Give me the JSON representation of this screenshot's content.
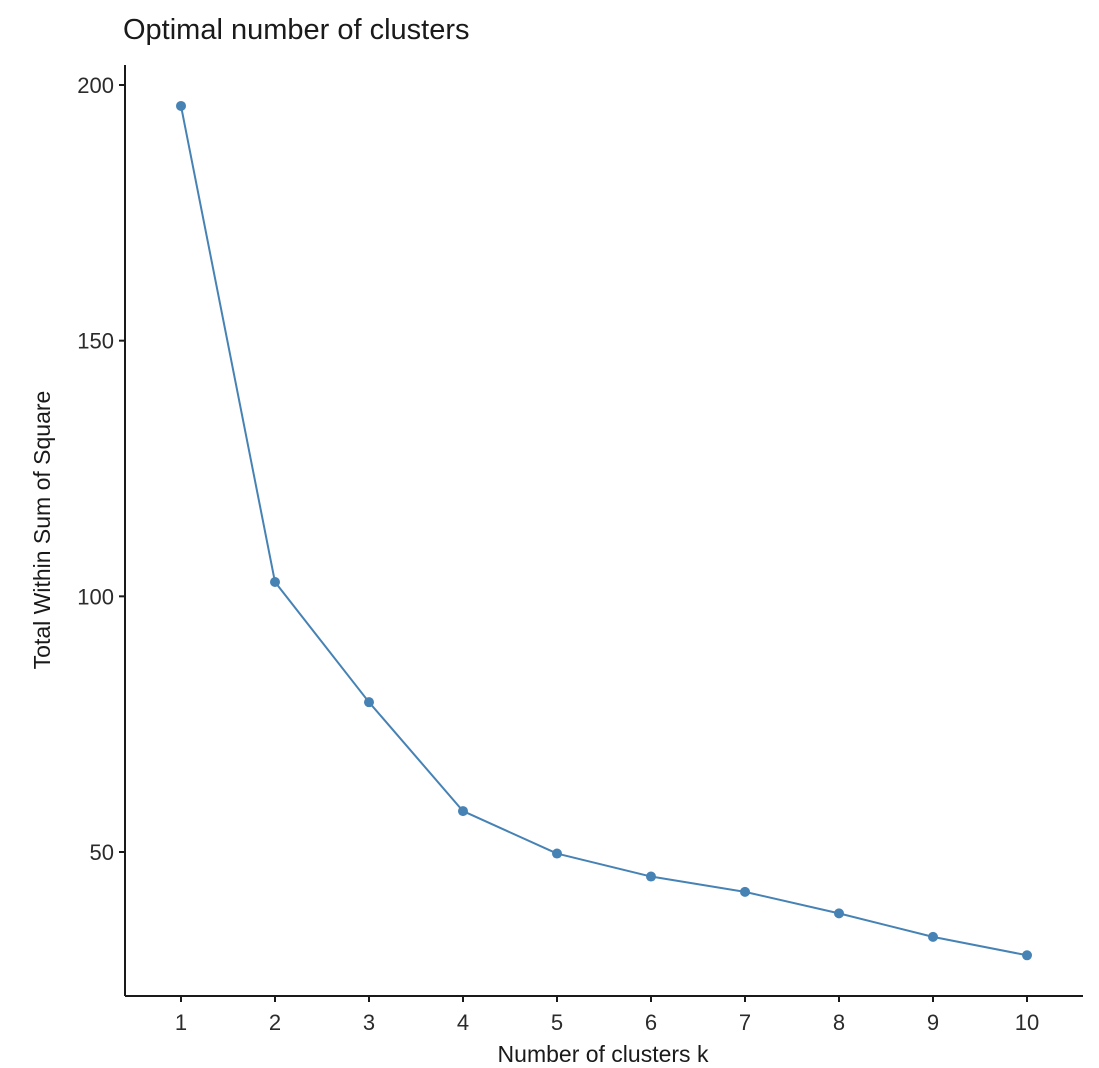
{
  "chart_data": {
    "type": "line",
    "title": "Optimal number of clusters",
    "xlabel": "Number of clusters k",
    "ylabel": "Total Within Sum of Square",
    "categories": [
      "1",
      "2",
      "3",
      "4",
      "5",
      "6",
      "7",
      "8",
      "9",
      "10"
    ],
    "x": [
      1,
      2,
      3,
      4,
      5,
      6,
      7,
      8,
      9,
      10
    ],
    "series": [
      {
        "name": "Total Within Sum of Square",
        "color": "#4682B4",
        "values": [
          195.9,
          102.8,
          79.3,
          58.0,
          49.7,
          45.2,
          42.2,
          38.0,
          33.4,
          29.8
        ]
      }
    ],
    "y_ticks": [
      50,
      100,
      150,
      200
    ],
    "ylim": [
      22,
      204
    ],
    "xlim": [
      0.4,
      10.6
    ],
    "grid": false,
    "legend": "none"
  },
  "colors": {
    "line": "#4682B4",
    "axis": "#1a1a1a",
    "background": "#ffffff"
  }
}
